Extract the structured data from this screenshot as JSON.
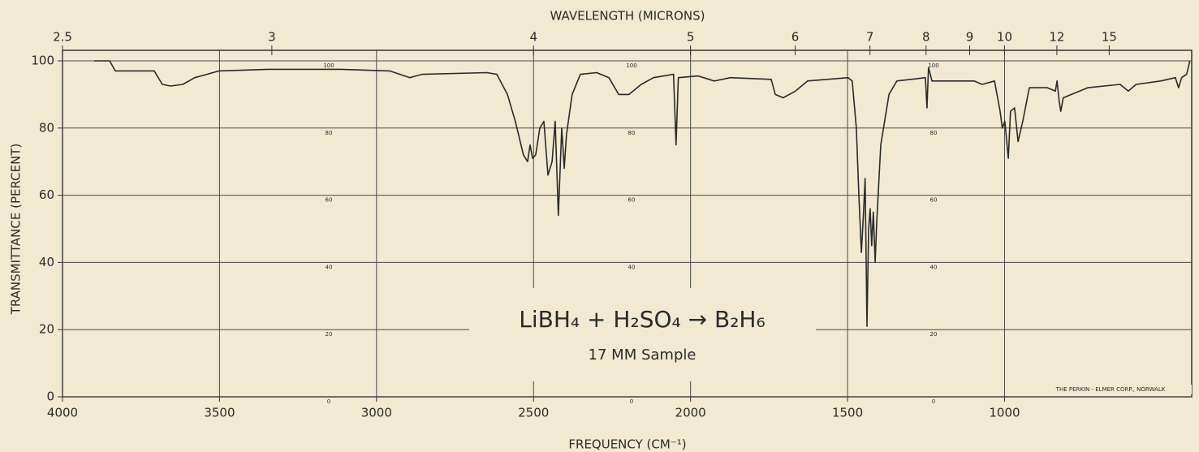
{
  "chart_data": {
    "type": "line",
    "x_axis_label": "FREQUENCY (CM⁻¹)",
    "x2_axis_label": "WAVELENGTH (MICRONS)",
    "y_axis_label": "TRANSMITTANCE (PERCENT)",
    "annotation": "LiBH₄ + H₂SO₄ → B₂H₆",
    "annotation_sub": "17 MM Sample",
    "imprint": "THE PERKIN - ELMER CORP., NORWALK",
    "inner_scale_labels": [
      100,
      80,
      60,
      40,
      20,
      0
    ],
    "xlim": [
      4000,
      404
    ],
    "xticks": [
      4000,
      3500,
      3000,
      2500,
      2000,
      1500,
      1000
    ],
    "x2ticks": [
      2.5,
      3,
      4,
      5,
      6,
      7,
      8,
      9,
      10,
      12,
      15
    ],
    "ylim": [
      0,
      100
    ],
    "yticks": [
      0,
      20,
      40,
      60,
      80,
      100
    ],
    "grid": true,
    "x": [
      3899,
      3850,
      3832,
      3708,
      3682,
      3656,
      3617,
      3579,
      3501,
      3346,
      3113,
      2958,
      2894,
      2855,
      2648,
      2617,
      2583,
      2558,
      2532,
      2519,
      2511,
      2503,
      2493,
      2480,
      2467,
      2454,
      2441,
      2431,
      2421,
      2410,
      2402,
      2395,
      2377,
      2351,
      2299,
      2260,
      2229,
      2196,
      2157,
      2118,
      2054,
      2046,
      2039,
      1976,
      1924,
      1873,
      1743,
      1730,
      1705,
      1666,
      1627,
      1498,
      1485,
      1472,
      1464,
      1456,
      1449,
      1444,
      1438,
      1433,
      1428,
      1423,
      1418,
      1412,
      1407,
      1394,
      1368,
      1343,
      1252,
      1247,
      1242,
      1231,
      1097,
      1071,
      1032,
      1014,
      1007,
      999,
      988,
      981,
      968,
      957,
      942,
      921,
      864,
      838,
      833,
      826,
      821,
      813,
      787,
      735,
      632,
      606,
      581,
      503,
      456,
      446,
      436,
      420,
      410
    ],
    "series": [
      {
        "color": "#2a2a2a",
        "values": [
          100,
          100,
          97,
          97,
          93,
          92.5,
          93,
          95,
          97,
          97.5,
          97.5,
          97,
          95,
          96,
          96.5,
          96,
          90,
          82,
          72,
          70,
          75,
          71,
          72,
          80,
          82,
          66,
          70,
          82,
          54,
          80,
          68,
          78,
          90,
          96,
          96.5,
          95,
          90,
          90,
          93,
          95,
          96,
          75,
          95,
          95.5,
          94,
          95,
          94.5,
          90,
          89,
          91,
          94,
          95,
          94,
          80,
          60,
          43,
          55,
          65,
          21,
          50,
          56,
          45,
          55,
          40,
          52,
          75,
          90,
          94,
          95,
          86,
          98,
          94,
          94,
          93,
          94,
          85,
          80,
          82,
          71,
          85,
          86,
          76,
          82,
          92,
          92,
          91,
          94,
          88,
          85,
          89,
          90,
          92,
          93,
          91,
          93,
          94,
          95,
          92,
          95,
          96,
          100
        ]
      }
    ]
  }
}
